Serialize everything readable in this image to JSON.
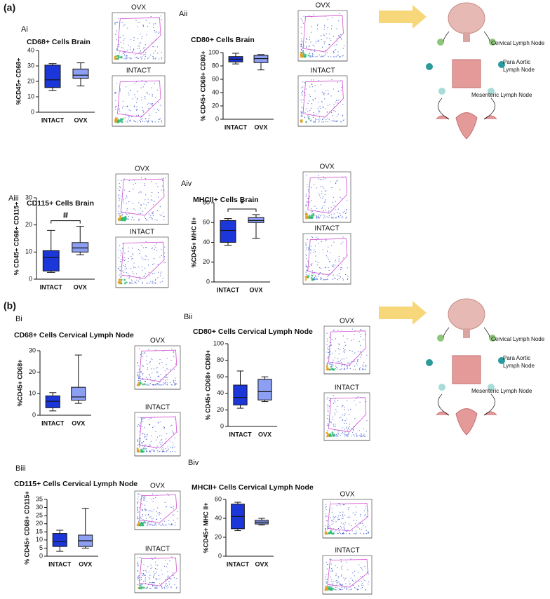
{
  "figure_labels": [
    "(a)",
    "(b)"
  ],
  "diagrams": [
    {
      "labels": [
        "Cervical Lymph Node",
        "Para Aortic",
        "Lymph Node",
        "Mesenteric Lymph Node"
      ]
    },
    {
      "labels": [
        "Cervical Lymph Node",
        "Para Aortic",
        "Lymph Node",
        "Mesenteric Lymph Node"
      ]
    }
  ],
  "chart_data": [
    {
      "type": "box",
      "panel": "Ai",
      "title": "CD68+ Cells Brain",
      "ylabel": "%CD45+ CD68+",
      "categories": [
        "INTACT",
        "OVX"
      ],
      "colors": [
        "#1c37d9",
        "#8c9ff2"
      ],
      "boxes": [
        {
          "min": 14,
          "q1": 16,
          "median": 21,
          "q3": 30.5,
          "max": 31.5
        },
        {
          "min": 17,
          "q1": 22,
          "median": 24,
          "q3": 28,
          "max": 32
        }
      ],
      "ylim": [
        0,
        40
      ],
      "yticks": [
        0,
        10,
        20,
        30,
        40
      ],
      "flow_titles": [
        "OVX",
        "INTACT"
      ]
    },
    {
      "type": "box",
      "panel": "Aii",
      "title": "CD80+ Cells Brain",
      "ylabel": "% CD45+ CD68+ CD80+",
      "categories": [
        "INTACT",
        "OVX"
      ],
      "colors": [
        "#1c37d9",
        "#8c9ff2"
      ],
      "boxes": [
        {
          "min": 83,
          "q1": 86,
          "median": 90,
          "q3": 94,
          "max": 99
        },
        {
          "min": 74,
          "q1": 85,
          "median": 91,
          "q3": 96,
          "max": 97
        }
      ],
      "ylim": [
        0,
        100
      ],
      "yticks": [
        0,
        20,
        40,
        60,
        80,
        100
      ],
      "flow_titles": [
        "OVX",
        "INTACT"
      ]
    },
    {
      "type": "box",
      "panel": "Aiii",
      "title": "CD115+ Cells Brain",
      "ylabel": "% CD45+ CD68+ CD115+",
      "categories": [
        "INTACT",
        "OVX"
      ],
      "colors": [
        "#1c37d9",
        "#8c9ff2"
      ],
      "boxes": [
        {
          "min": 2.5,
          "q1": 3,
          "median": 8,
          "q3": 10.5,
          "max": 18
        },
        {
          "min": 9,
          "q1": 10,
          "median": 11.5,
          "q3": 13.5,
          "max": 19.5
        }
      ],
      "ylim": [
        0,
        30
      ],
      "yticks": [
        0,
        10,
        20,
        30
      ],
      "annotation": "#",
      "flow_titles": [
        "OVX",
        "INTACT"
      ]
    },
    {
      "type": "box",
      "panel": "Aiv",
      "title": "MHCII+ Cells Brain",
      "ylabel": "%CD45+ MHC II+",
      "categories": [
        "INTACT",
        "OVX"
      ],
      "colors": [
        "#1c37d9",
        "#8c9ff2"
      ],
      "boxes": [
        {
          "min": 37,
          "q1": 40,
          "median": 52,
          "q3": 62,
          "max": 64
        },
        {
          "min": 44,
          "q1": 60,
          "median": 62,
          "q3": 65,
          "max": 68
        }
      ],
      "ylim": [
        0,
        80
      ],
      "yticks": [
        0,
        20,
        40,
        60,
        80
      ],
      "annotation": "*",
      "flow_titles": [
        "OVX",
        "INTACT"
      ]
    },
    {
      "type": "box",
      "panel": "Bi",
      "title": "CD68+ Cells Cervical Lymph Node",
      "ylabel": "%CD45+ CD68+",
      "categories": [
        "INTACT",
        "OVX"
      ],
      "colors": [
        "#1c37d9",
        "#8c9ff2"
      ],
      "boxes": [
        {
          "min": 2,
          "q1": 3.5,
          "median": 6.5,
          "q3": 9,
          "max": 10.5
        },
        {
          "min": 5.5,
          "q1": 7,
          "median": 8.5,
          "q3": 13,
          "max": 28
        }
      ],
      "ylim": [
        0,
        30
      ],
      "yticks": [
        0,
        10,
        20,
        30
      ],
      "flow_titles": [
        "OVX",
        "INTACT"
      ]
    },
    {
      "type": "box",
      "panel": "Bii",
      "title": "CD80+ Cells Cervical Lymph Node",
      "ylabel": "% CD45+ CD68+ CD80+",
      "categories": [
        "INTACT",
        "OVX"
      ],
      "colors": [
        "#1c37d9",
        "#8c9ff2"
      ],
      "boxes": [
        {
          "min": 22,
          "q1": 26,
          "median": 35,
          "q3": 50,
          "max": 67
        },
        {
          "min": 30,
          "q1": 32,
          "median": 42,
          "q3": 57,
          "max": 60
        }
      ],
      "ylim": [
        0,
        100
      ],
      "yticks": [
        0,
        20,
        40,
        60,
        80,
        100
      ],
      "flow_titles": [
        "OVX",
        "INTACT"
      ]
    },
    {
      "type": "box",
      "panel": "Biii",
      "title": "CD115+ Cells Cervical Lymph Node",
      "ylabel": "% CD45+ CD68+ CD115+",
      "categories": [
        "INTACT",
        "OVX"
      ],
      "colors": [
        "#1c37d9",
        "#8c9ff2"
      ],
      "boxes": [
        {
          "min": 3,
          "q1": 6,
          "median": 9,
          "q3": 14,
          "max": 16
        },
        {
          "min": 5,
          "q1": 6,
          "median": 9.5,
          "q3": 13,
          "max": 29.5
        }
      ],
      "ylim": [
        0,
        35
      ],
      "yticks": [
        0,
        5,
        10,
        15,
        20,
        25,
        30,
        35
      ],
      "flow_titles": [
        "OVX",
        "INTACT"
      ]
    },
    {
      "type": "box",
      "panel": "Biv",
      "title": "MHCII+ Cells Cervical Lymph Node",
      "ylabel": "%CD45+ MHC II+",
      "categories": [
        "INTACT",
        "OVX"
      ],
      "colors": [
        "#1c37d9",
        "#8c9ff2"
      ],
      "boxes": [
        {
          "min": 27,
          "q1": 29,
          "median": 42,
          "q3": 55,
          "max": 57
        },
        {
          "min": 33,
          "q1": 34,
          "median": 36,
          "q3": 38,
          "max": 40
        }
      ],
      "ylim": [
        0,
        60
      ],
      "yticks": [
        0,
        20,
        40,
        60
      ],
      "flow_titles": [
        "OVX",
        "INTACT"
      ]
    }
  ]
}
